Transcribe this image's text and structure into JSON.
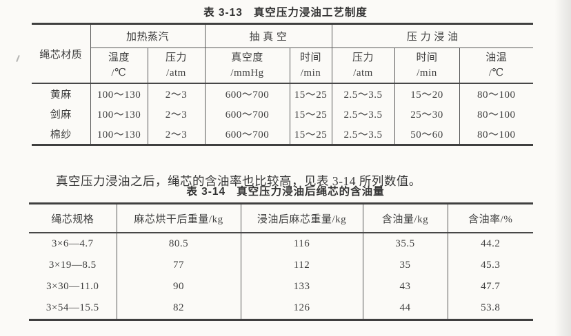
{
  "colors": {
    "paper": "#fbfaf7",
    "ink": "#3b3b3b",
    "border": "#4a4a4a"
  },
  "table13": {
    "caption": {
      "label": "表 3-13",
      "title": "真空压力浸油工艺制度"
    },
    "header": {
      "material": "绳芯材质",
      "groups": [
        {
          "label": "加热蒸汽"
        },
        {
          "label": "抽 真 空"
        },
        {
          "label": "压 力 浸 油"
        }
      ],
      "subcolumns": [
        {
          "name": "温度",
          "unit": "/℃"
        },
        {
          "name": "压力",
          "unit": "/atm"
        },
        {
          "name": "真空度",
          "unit": "/mmHg"
        },
        {
          "name": "时间",
          "unit": "/min"
        },
        {
          "name": "压力",
          "unit": "/atm"
        },
        {
          "name": "时间",
          "unit": "/min"
        },
        {
          "name": "油温",
          "unit": "/℃"
        }
      ]
    },
    "rows": [
      [
        "黄麻",
        "100～130",
        "2～3",
        "600～700",
        "15～25",
        "2.5～3.5",
        "15～20",
        "80～100"
      ],
      [
        "剑麻",
        "100～130",
        "2～3",
        "600～700",
        "15～25",
        "2.5～3.5",
        "25～30",
        "80～100"
      ],
      [
        "棉纱",
        "100～130",
        "2～3",
        "600～700",
        "15～25",
        "2.5～3.5",
        "50～60",
        "80～100"
      ]
    ]
  },
  "paragraph": "真空压力浸油之后，绳芯的含油率也比较高，见表 3-14 所列数值。",
  "table14": {
    "caption": {
      "label": "表 3-14",
      "title": "真空压力浸油后绳芯的含油量"
    },
    "headers": [
      "绳芯规格",
      "麻芯烘干后重量/kg",
      "浸油后麻芯重量/kg",
      "含油量/kg",
      "含油率/%"
    ],
    "rows": [
      [
        "3×6—4.7",
        "80.5",
        "116",
        "35.5",
        "44.2"
      ],
      [
        "3×19—8.5",
        "77",
        "112",
        "35",
        "45.3"
      ],
      [
        "3×30—11.0",
        "90",
        "133",
        "43",
        "47.7"
      ],
      [
        "3×54—15.5",
        "82",
        "126",
        "44",
        "53.8"
      ]
    ]
  }
}
